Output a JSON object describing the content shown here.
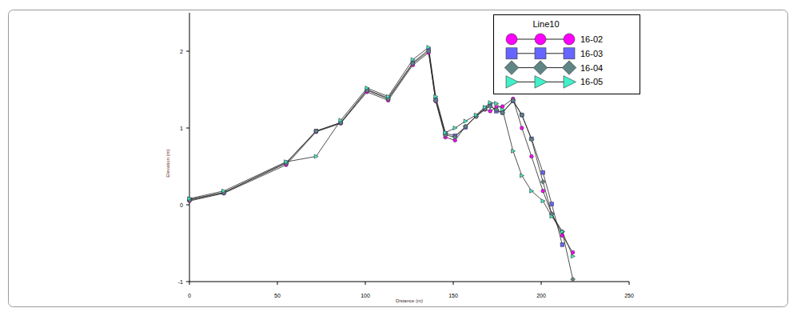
{
  "chart_data": {
    "type": "line",
    "x_label": "Distance (m)",
    "y_label": "Elevation (m)",
    "legend_title": "Line10",
    "legend": "top-right",
    "grid": false,
    "xlim": [
      0,
      250
    ],
    "xticks": [
      0,
      50,
      100,
      150,
      200,
      250
    ],
    "ylim": [
      -1,
      2.5
    ],
    "yticks": [
      -1,
      0,
      1,
      2
    ],
    "x": [
      0,
      19.5,
      55,
      72,
      86,
      101,
      113,
      127,
      136,
      140,
      145.5,
      151,
      157,
      163,
      168,
      171,
      174.5,
      178,
      184,
      189,
      194.5,
      201,
      206,
      212,
      218
    ],
    "series": [
      {
        "name": "16-02",
        "color": "#ff00ff",
        "marker": "circle",
        "values": [
          0.05,
          0.15,
          0.52,
          0.95,
          1.06,
          1.47,
          1.36,
          1.82,
          1.98,
          1.35,
          0.88,
          0.84,
          1.02,
          1.15,
          1.24,
          1.22,
          1.27,
          1.28,
          1.38,
          1.0,
          0.63,
          0.18,
          -0.12,
          -0.4,
          -0.62
        ]
      },
      {
        "name": "16-03",
        "color": "#6666ff",
        "marker": "square",
        "values": [
          0.07,
          0.16,
          0.55,
          0.96,
          1.07,
          1.5,
          1.39,
          1.85,
          2.02,
          1.37,
          0.93,
          0.9,
          1.01,
          1.16,
          1.26,
          1.3,
          1.22,
          1.2,
          1.35,
          1.17,
          0.86,
          0.42,
          0.01,
          -0.52,
          null
        ]
      },
      {
        "name": "16-04",
        "color": "#5f8585",
        "marker": "diamond",
        "values": [
          0.06,
          0.16,
          0.54,
          0.96,
          1.07,
          1.49,
          1.38,
          1.84,
          2.0,
          1.36,
          0.91,
          0.88,
          1.02,
          1.15,
          1.25,
          1.28,
          1.24,
          1.2,
          1.36,
          1.17,
          0.85,
          0.3,
          -0.12,
          -0.35,
          -0.97
        ]
      },
      {
        "name": "16-05",
        "color": "#40f0c8",
        "marker": "triangle",
        "values": [
          0.08,
          0.18,
          0.56,
          0.63,
          1.1,
          1.52,
          1.41,
          1.89,
          2.05,
          1.41,
          0.94,
          1.0,
          1.09,
          1.17,
          1.27,
          1.33,
          1.32,
          1.24,
          0.7,
          0.38,
          0.18,
          0.05,
          -0.15,
          -0.35,
          -0.67
        ]
      }
    ]
  }
}
